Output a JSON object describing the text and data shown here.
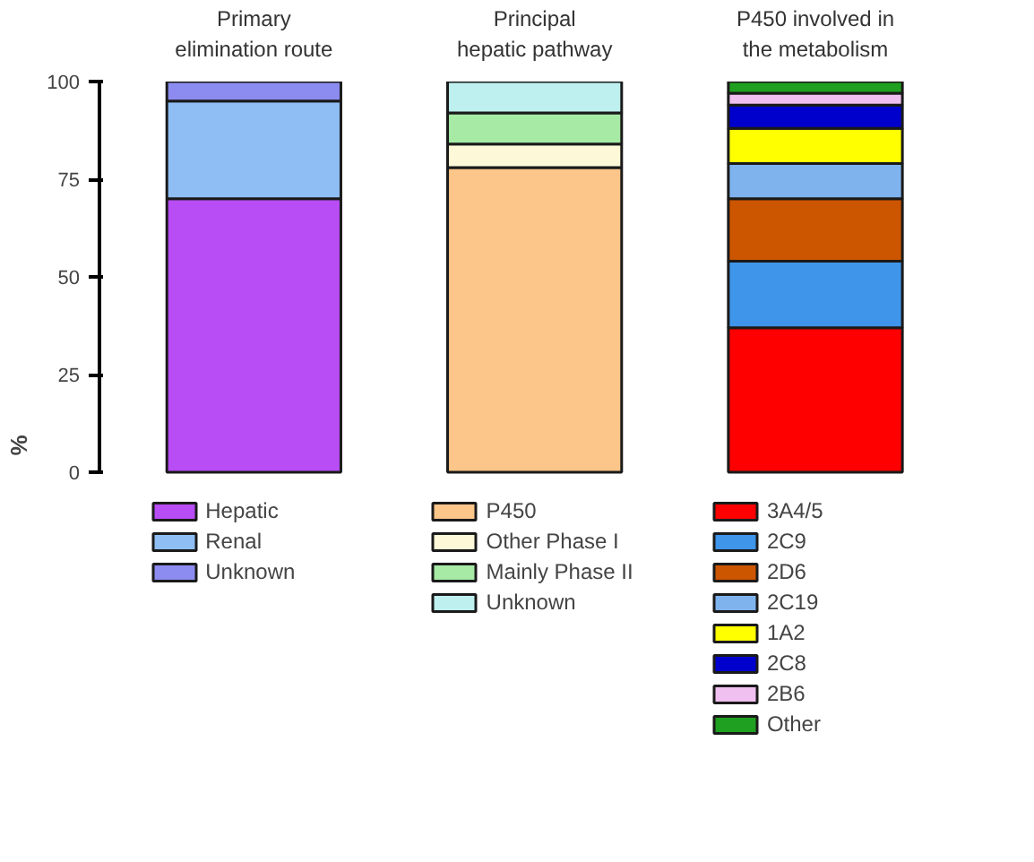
{
  "chart_data": {
    "type": "bar",
    "stacked": true,
    "ylabel": "%",
    "categories": [
      "Primary\nelimination route",
      "Principal\nhepatic pathway",
      "P450 involved in\nthe metabolism"
    ],
    "ylim": [
      0,
      100
    ],
    "yticks": [
      0,
      25,
      50,
      75,
      100
    ],
    "grid": false,
    "legend": "bottom",
    "series": [
      {
        "name": "Hepatic",
        "color": "#b84cf5",
        "values": [
          70,
          null,
          null
        ]
      },
      {
        "name": "Renal",
        "color": "#8fbef5",
        "values": [
          25,
          null,
          null
        ]
      },
      {
        "name": "Unknown",
        "color": "#8c8cf0",
        "values": [
          5,
          null,
          null
        ]
      },
      {
        "name": "P450",
        "color": "#fcc68a",
        "values": [
          null,
          78,
          null
        ]
      },
      {
        "name": "Other Phase I",
        "color": "#fdf8d8",
        "values": [
          null,
          6,
          null
        ]
      },
      {
        "name": "Mainly Phase II",
        "color": "#a6eaa6",
        "values": [
          null,
          8,
          null
        ]
      },
      {
        "name": "Unknown",
        "color": "#bff0f0",
        "values": [
          null,
          8,
          null
        ]
      },
      {
        "name": "3A4/5",
        "color": "#ff0000",
        "values": [
          null,
          null,
          37
        ]
      },
      {
        "name": "2C9",
        "color": "#3f95ea",
        "values": [
          null,
          null,
          17
        ]
      },
      {
        "name": "2D6",
        "color": "#cc5500",
        "values": [
          null,
          null,
          16
        ]
      },
      {
        "name": "2C19",
        "color": "#7fb3ee",
        "values": [
          null,
          null,
          9
        ]
      },
      {
        "name": "1A2",
        "color": "#ffff00",
        "values": [
          null,
          null,
          9
        ]
      },
      {
        "name": "2C8",
        "color": "#0000cc",
        "values": [
          null,
          null,
          6
        ]
      },
      {
        "name": "2B6",
        "color": "#f0c0f0",
        "values": [
          null,
          null,
          3
        ]
      },
      {
        "name": "Other",
        "color": "#20a020",
        "values": [
          null,
          null,
          3
        ]
      }
    ]
  }
}
